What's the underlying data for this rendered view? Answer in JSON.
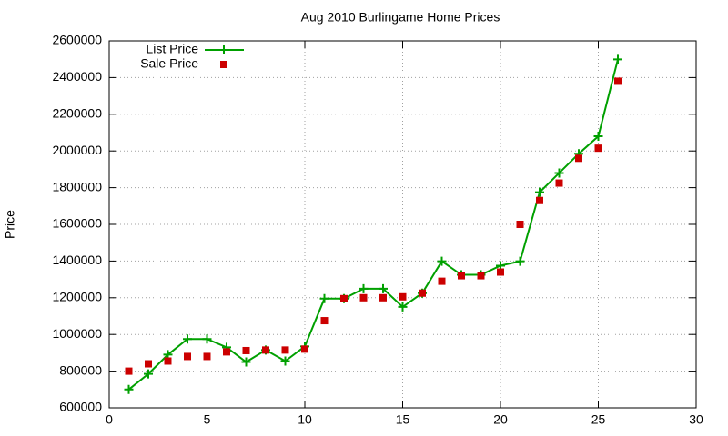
{
  "chart_data": {
    "type": "line",
    "title": "Aug 2010 Burlingame Home Prices",
    "y_label": "Price",
    "x": [
      1,
      2,
      3,
      4,
      5,
      6,
      7,
      8,
      9,
      10,
      11,
      12,
      13,
      14,
      15,
      16,
      17,
      18,
      19,
      20,
      21,
      22,
      23,
      24,
      25,
      26
    ],
    "series": [
      {
        "name": "List Price",
        "color": "#00a000",
        "mode": "lines+markers",
        "marker": "plus",
        "values": [
          700000,
          785000,
          890000,
          975000,
          975000,
          930000,
          850000,
          915000,
          855000,
          935000,
          1195000,
          1195000,
          1249000,
          1249000,
          1150000,
          1225000,
          1399000,
          1325000,
          1325000,
          1375000,
          1399000,
          1775000,
          1880000,
          1985000,
          2080000,
          2499000
        ]
      },
      {
        "name": "Sale Price",
        "color": "#cc0000",
        "mode": "markers",
        "marker": "square",
        "values": [
          800000,
          840000,
          855000,
          880000,
          880000,
          905000,
          912000,
          915000,
          915000,
          920000,
          1075000,
          1195000,
          1200000,
          1200000,
          1205000,
          1225000,
          1290000,
          1320000,
          1320000,
          1340000,
          1600000,
          1730000,
          1825000,
          1960000,
          2015000,
          2380000
        ]
      }
    ],
    "xlim": [
      0,
      30
    ],
    "xticks": [
      0,
      5,
      10,
      15,
      20,
      25,
      30
    ],
    "ylim": [
      600000,
      2600000
    ],
    "yticks": [
      600000,
      800000,
      1000000,
      1200000,
      1400000,
      1600000,
      1800000,
      2000000,
      2200000,
      2400000,
      2600000
    ],
    "grid": true,
    "legend": "top-left"
  }
}
